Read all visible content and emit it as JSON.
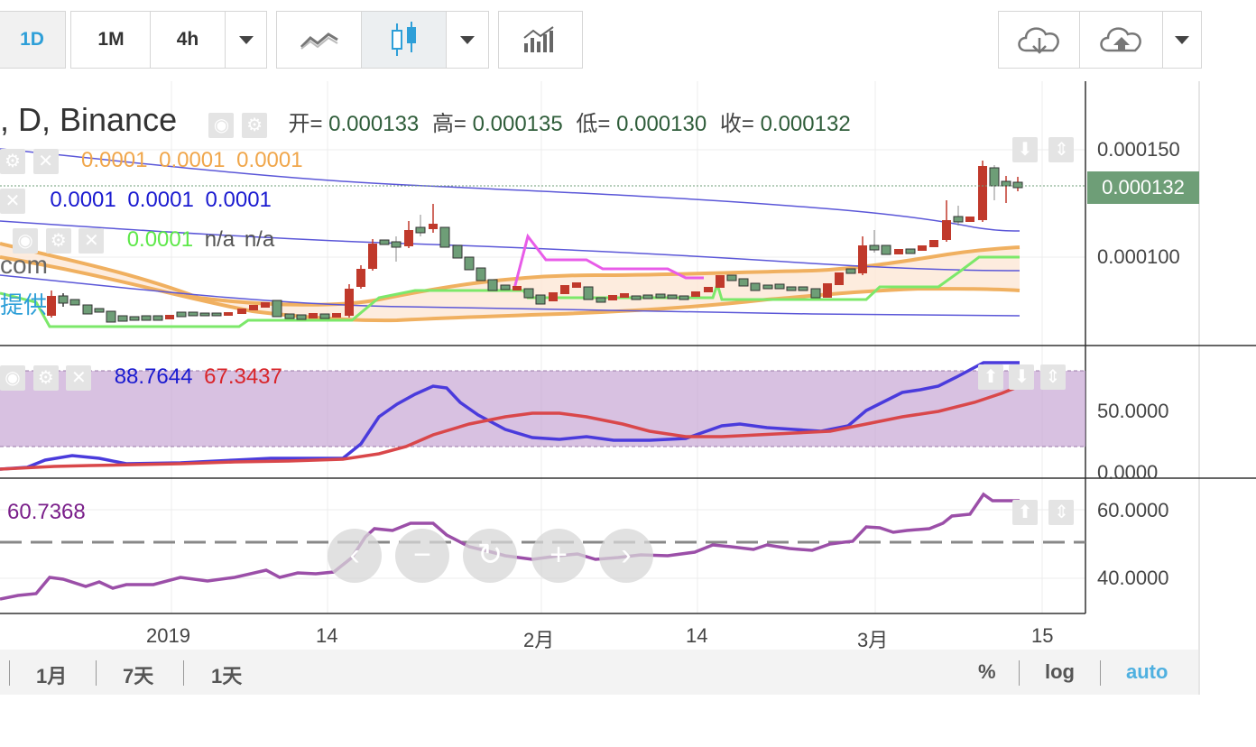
{
  "toolbar": {
    "intervals": [
      "1D",
      "1M",
      "4h"
    ],
    "active_interval": "1D"
  },
  "chart": {
    "title": ", D, Binance",
    "ohlc": {
      "open_label": "开=",
      "open": "0.000133",
      "high_label": "高=",
      "high": "0.000135",
      "low_label": "低=",
      "low": "0.000130",
      "close_label": "收=",
      "close": "0.000132"
    },
    "indicator1_values": [
      "0.0001",
      "0.0001",
      "0.0001"
    ],
    "indicator2_values": [
      "0.0001",
      "0.0001",
      "0.0001"
    ],
    "indicator3_values": [
      "0.0001",
      "n/a",
      "n/a"
    ],
    "watermark_text": "com",
    "watermark_text2": "提供",
    "colors": {
      "up": "#6e9e77",
      "down": "#c0392b",
      "orange": "#f0a64a",
      "blue_band": "#5b57d8",
      "green": "#7ce86a",
      "pink": "#e85ce8",
      "stoch_k": "#4a3bdc",
      "stoch_d": "#d9474a",
      "rsi": "#9b4fa8"
    }
  },
  "price_axis": {
    "labels": [
      "0.000150",
      "0.000100"
    ],
    "current_price": "0.000132"
  },
  "stoch": {
    "k_value": "88.7644",
    "d_value": "67.3437",
    "axis_labels": [
      "50.0000",
      "0.0000"
    ]
  },
  "rsi": {
    "value": "60.7368",
    "axis_labels": [
      "60.0000",
      "40.0000"
    ]
  },
  "time_axis": {
    "labels": [
      "2019",
      "14",
      "2月",
      "14",
      "3月",
      "15"
    ]
  },
  "bottom_bar": {
    "ranges": [
      "1月",
      "7天",
      "1天"
    ],
    "percent": "%",
    "log": "log",
    "auto": "auto"
  },
  "nav_icons": [
    "chevron-left-icon",
    "zoom-out-icon",
    "reset-icon",
    "zoom-in-icon",
    "chevron-right-icon"
  ]
}
